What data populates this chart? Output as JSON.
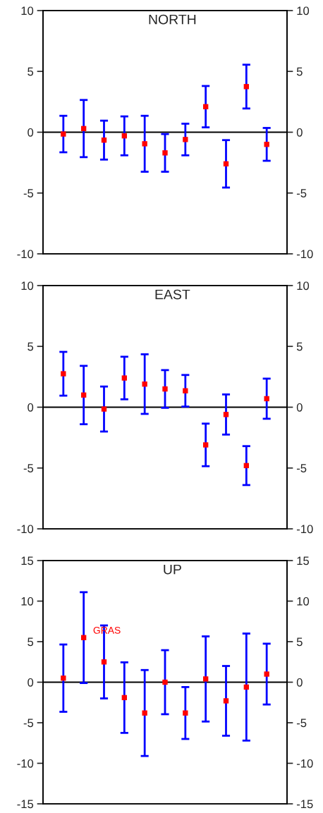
{
  "chart_data": [
    {
      "type": "scatter",
      "title": "NORTH",
      "categories": [
        null,
        null,
        null,
        null,
        null,
        null,
        null,
        null,
        null,
        null,
        null
      ],
      "series": [
        {
          "color": "#ff0000",
          "values": [
            -0.15,
            0.3,
            -0.65,
            -0.3,
            -0.95,
            -1.7,
            -0.6,
            2.1,
            -2.6,
            3.75,
            -1.0
          ],
          "errors": [
            1.5,
            2.35,
            1.6,
            1.6,
            2.3,
            1.55,
            1.3,
            1.7,
            1.95,
            1.8,
            1.35
          ]
        }
      ],
      "ylim": [
        -10,
        10
      ],
      "yticks": [
        -10,
        -5,
        0,
        5,
        10
      ],
      "y2lim": [
        -10,
        10
      ],
      "y2ticks": [
        -10,
        -5,
        0,
        5,
        10
      ],
      "tick_labels": "y",
      "marker": "square",
      "grid": false,
      "legend": false,
      "ref_lines": [
        {
          "axis": "y",
          "value": 0,
          "color": "#000000"
        }
      ]
    },
    {
      "type": "scatter",
      "title": "EAST",
      "categories": [
        null,
        null,
        null,
        null,
        null,
        null,
        null,
        null,
        null,
        null,
        null
      ],
      "series": [
        {
          "color": "#ff0000",
          "values": [
            2.75,
            1.0,
            -0.15,
            2.4,
            1.9,
            1.5,
            1.35,
            -3.1,
            -0.6,
            -4.8,
            0.7
          ],
          "errors": [
            1.8,
            2.4,
            1.85,
            1.75,
            2.45,
            1.55,
            1.3,
            1.75,
            1.65,
            1.6,
            1.65
          ]
        }
      ],
      "ylim": [
        -10,
        10
      ],
      "yticks": [
        -10,
        -5,
        0,
        5,
        10
      ],
      "y2lim": [
        -10,
        10
      ],
      "y2ticks": [
        -10,
        -5,
        0,
        5,
        10
      ],
      "tick_labels": "y",
      "marker": "square",
      "grid": false,
      "legend": false,
      "ref_lines": [
        {
          "axis": "y",
          "value": 0,
          "color": "#000000"
        }
      ]
    },
    {
      "type": "scatter",
      "title": "UP",
      "categories": [
        null,
        null,
        null,
        null,
        null,
        null,
        null,
        null,
        null,
        null,
        null
      ],
      "series": [
        {
          "color": "#ff0000",
          "values": [
            0.5,
            5.5,
            2.5,
            -1.9,
            -3.8,
            0,
            -3.8,
            0.4,
            -2.3,
            -0.6,
            1.0
          ],
          "errors": [
            4.15,
            5.6,
            4.5,
            4.35,
            5.3,
            3.95,
            3.2,
            5.25,
            4.3,
            6.6,
            3.75
          ]
        }
      ],
      "ylim": [
        -15,
        15
      ],
      "yticks": [
        -15,
        -10,
        -5,
        0,
        5,
        10,
        15
      ],
      "y2lim": [
        -15,
        15
      ],
      "y2ticks": [
        -15,
        -10,
        -5,
        0,
        5,
        10,
        15
      ],
      "tick_labels": "y",
      "marker": "square",
      "grid": false,
      "legend": false,
      "ref_lines": [
        {
          "axis": "y",
          "value": 0,
          "color": "#000000"
        }
      ],
      "annotations": [
        "GRAS"
      ]
    }
  ]
}
